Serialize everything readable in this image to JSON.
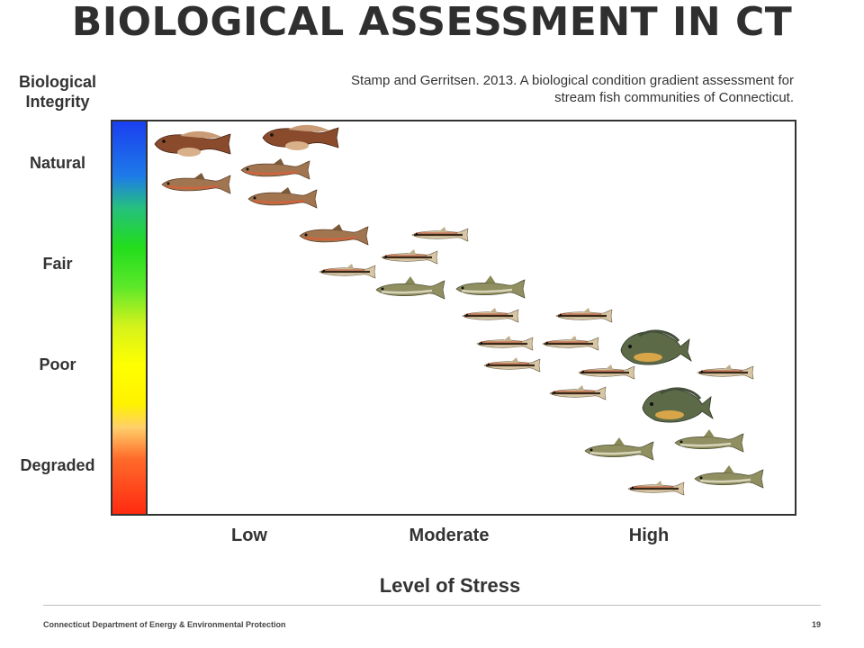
{
  "title": "BIOLOGICAL ASSESSMENT IN CT",
  "citation": {
    "line1": "Stamp and Gerritsen. 2013. A biological condition gradient assessment for",
    "line2": "stream fish communities of Connecticut."
  },
  "y_axis": {
    "title_line1": "Biological",
    "title_line2": "Integrity",
    "levels": [
      "Natural",
      "Fair",
      "Poor",
      "Degraded"
    ],
    "gradient": "blue-green-yellow-red"
  },
  "x_axis": {
    "title": "Level of Stress",
    "levels": [
      "Low",
      "Moderate",
      "High"
    ]
  },
  "colors": {
    "gradient_top": "#1a3ff0",
    "gradient_green": "#22dd1c",
    "gradient_yellow": "#ffff00",
    "gradient_bottom": "#ff2a10"
  },
  "footer": {
    "organization": "Connecticut Department of Energy & Environmental Protection",
    "page_number": "19"
  }
}
